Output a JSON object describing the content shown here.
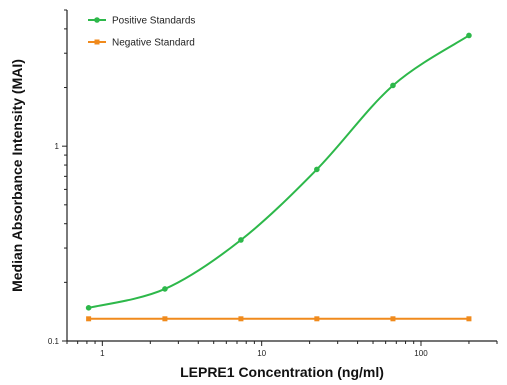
{
  "chart_data": {
    "type": "line",
    "xlabel": "LEPRE1 Concentration (ng/ml)",
    "ylabel": "Median Absorbance Intensity (MAI)",
    "x_scale": "log",
    "y_scale": "log",
    "xlim": [
      0.6,
      300
    ],
    "ylim": [
      0.1,
      5
    ],
    "x_ticks": [
      1,
      10,
      100
    ],
    "x_tick_labels": [
      "1",
      "10",
      "100"
    ],
    "y_ticks": [
      0.1,
      1
    ],
    "y_tick_labels": [
      "0.1",
      "1"
    ],
    "legend_position": "top-left",
    "grid": false,
    "series": [
      {
        "name": "Positive Standards",
        "color": "#2db84a",
        "marker": "circle",
        "x": [
          0.82,
          2.47,
          7.41,
          22.2,
          66.7,
          200
        ],
        "y": [
          0.148,
          0.185,
          0.33,
          0.76,
          2.05,
          3.7
        ],
        "curve_fit": "4PL"
      },
      {
        "name": "Negative Standard",
        "color": "#f08a1c",
        "marker": "square",
        "x": [
          0.82,
          2.47,
          7.41,
          22.2,
          66.7,
          200
        ],
        "y": [
          0.13,
          0.13,
          0.13,
          0.13,
          0.13,
          0.13
        ],
        "curve_fit": "line"
      }
    ]
  }
}
